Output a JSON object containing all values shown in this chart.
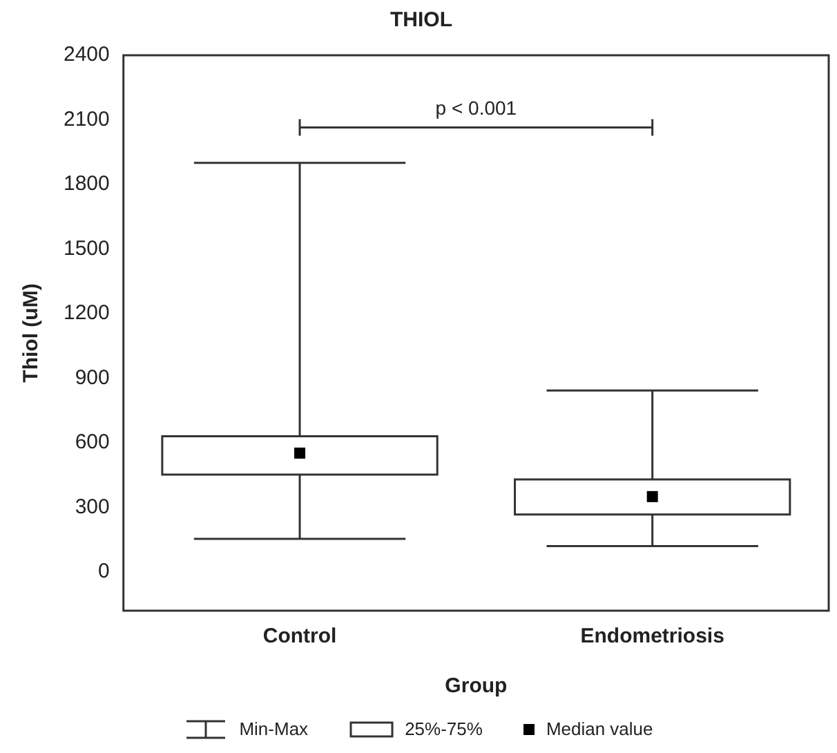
{
  "chart_data": {
    "type": "box",
    "title": "THIOL",
    "xlabel": "Group",
    "ylabel": "Thiol (uM)",
    "categories": [
      "Control",
      "Endometriosis"
    ],
    "boxes": [
      {
        "low": 154,
        "q1": 452,
        "median": 552,
        "q3": 630,
        "high": 1900
      },
      {
        "low": 120,
        "q1": 267,
        "median": 350,
        "q3": 430,
        "high": 843
      }
    ],
    "color": "#ffffff",
    "ylim": [
      -180,
      2400
    ],
    "yticks": [
      0,
      300,
      600,
      900,
      1200,
      1500,
      1800,
      2100,
      2400
    ],
    "grid": false,
    "annotations": [
      "p < 0.001",
      "Min-Max",
      "25%-75%",
      "Median value"
    ]
  }
}
